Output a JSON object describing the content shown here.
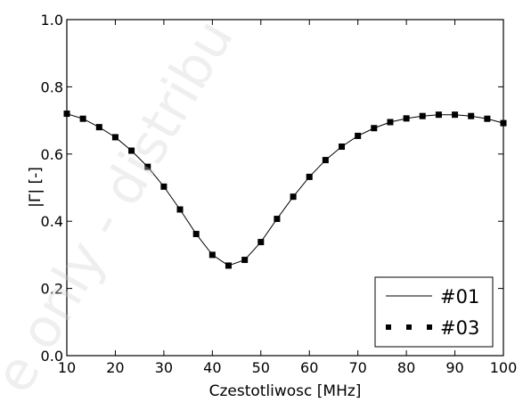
{
  "chart_data": {
    "type": "line",
    "xlabel": "Czestotliwosc [MHz]",
    "ylabel": "|Γ| [-]",
    "xlim": [
      10,
      100
    ],
    "ylim": [
      0.0,
      1.0
    ],
    "xticks": [
      "10",
      "20",
      "30",
      "40",
      "50",
      "60",
      "70",
      "80",
      "90",
      "100"
    ],
    "yticks": [
      "0.0",
      "0.2",
      "0.4",
      "0.6",
      "0.8",
      "1.0"
    ],
    "grid": false,
    "legend_position": "bottom-right",
    "series": [
      {
        "name": "#01",
        "style": "line",
        "color": "#000000",
        "x": [
          10,
          13.33,
          16.67,
          20,
          23.33,
          26.67,
          30,
          33.33,
          36.67,
          40,
          43.33,
          46.67,
          50,
          53.33,
          56.67,
          60,
          63.33,
          66.67,
          70,
          73.33,
          76.67,
          80,
          83.33,
          86.67,
          90,
          93.33,
          96.67,
          100
        ],
        "y": [
          0.72,
          0.705,
          0.68,
          0.65,
          0.61,
          0.562,
          0.503,
          0.435,
          0.362,
          0.3,
          0.268,
          0.285,
          0.338,
          0.407,
          0.473,
          0.532,
          0.582,
          0.622,
          0.654,
          0.677,
          0.695,
          0.706,
          0.713,
          0.717,
          0.717,
          0.713,
          0.705,
          0.692
        ]
      },
      {
        "name": "#03",
        "style": "square-markers",
        "color": "#000000",
        "x": [
          10,
          13.33,
          16.67,
          20,
          23.33,
          26.67,
          30,
          33.33,
          36.67,
          40,
          43.33,
          46.67,
          50,
          53.33,
          56.67,
          60,
          63.33,
          66.67,
          70,
          73.33,
          76.67,
          80,
          83.33,
          86.67,
          90,
          93.33,
          96.67,
          100
        ],
        "y": [
          0.72,
          0.705,
          0.68,
          0.65,
          0.61,
          0.562,
          0.503,
          0.435,
          0.362,
          0.3,
          0.268,
          0.285,
          0.338,
          0.407,
          0.473,
          0.532,
          0.582,
          0.622,
          0.654,
          0.677,
          0.695,
          0.706,
          0.713,
          0.717,
          0.717,
          0.713,
          0.705,
          0.692
        ]
      }
    ]
  }
}
